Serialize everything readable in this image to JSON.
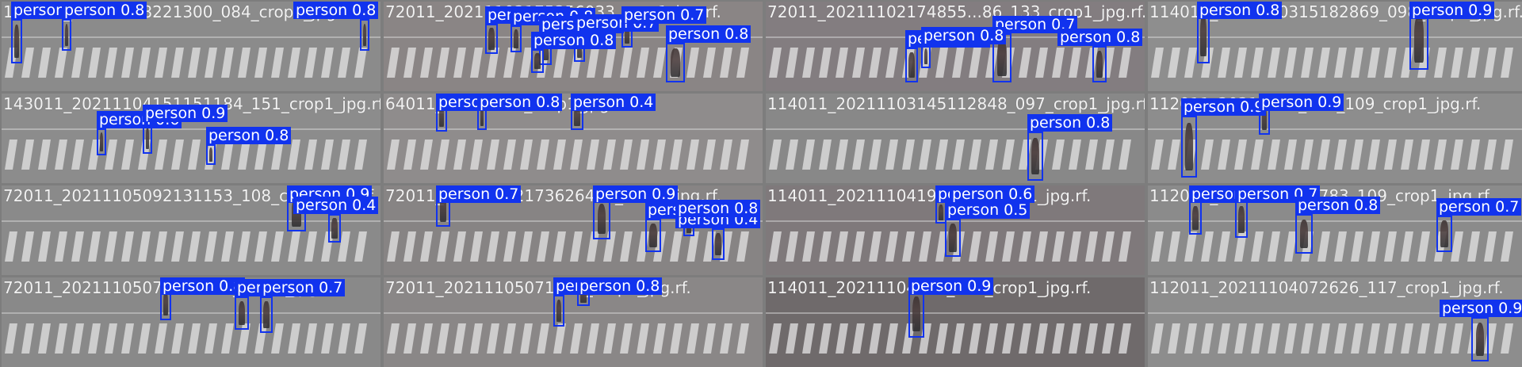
{
  "colors": {
    "box": "#1133ee",
    "label_text": "#ffffff",
    "divider": "#7d7d7d"
  },
  "tiles": [
    {
      "title": "154011_20211108221300_084_crop1_jpg.rf.",
      "tone": "#8b8b8b",
      "detections": [
        {
          "label": "person 0.9"
        },
        {
          "label": "person 0.8"
        },
        {
          "label": "person 0.8"
        }
      ]
    },
    {
      "title": "72011_20211102175356033_crop1_jpg.rf.",
      "tone": "#8a8585",
      "detections": [
        {
          "label": "person 0.8"
        },
        {
          "label": "person 0.8"
        },
        {
          "label": "person 0.8"
        },
        {
          "label": "person 0.7"
        },
        {
          "label": "person 0.8"
        },
        {
          "label": "person 0.8"
        },
        {
          "label": "person 0.7"
        }
      ]
    },
    {
      "title": "72011_20211102174855...86_133_crop1_jpg.rf.",
      "tone": "#837d80",
      "detections": [
        {
          "label": "person 0.8"
        },
        {
          "label": "person 0.7"
        },
        {
          "label": "person 0.8"
        },
        {
          "label": "person 0.8"
        }
      ]
    },
    {
      "title": "114011_2021110315182869_098_crop1_jpg.rf.",
      "tone": "#8e8e8e",
      "detections": [
        {
          "label": "person 0.8"
        },
        {
          "label": "person 0.9"
        }
      ]
    },
    {
      "title": "143011_20211104151151184_151_crop1_jpg.rf.",
      "tone": "#8c8c8c",
      "detections": [
        {
          "label": "person 0.6"
        },
        {
          "label": "person 0.9"
        },
        {
          "label": "person 0.8"
        }
      ]
    },
    {
      "title": "64011_20211104_crop1_jpg.rf.",
      "tone": "#8f8c8c",
      "detections": [
        {
          "label": "person 0.5"
        },
        {
          "label": "person 0.8"
        },
        {
          "label": "person 0.4"
        }
      ]
    },
    {
      "title": "114011_20211103145112848_097_crop1_jpg.rf.",
      "tone": "#888888",
      "detections": [
        {
          "label": "person 0.8"
        }
      ]
    },
    {
      "title": "112011_20211104_748_109_crop1_jpg.rf.",
      "tone": "#8d8d8d",
      "detections": [
        {
          "label": "person 0.9"
        },
        {
          "label": "person 0.9"
        }
      ]
    },
    {
      "title": "72011_20211105092131153_108_crop1_jpg.rf.",
      "tone": "#8a8a8a",
      "detections": [
        {
          "label": "person 0.9"
        },
        {
          "label": "person 0.4"
        }
      ]
    },
    {
      "title": "72011_20211102173626411_crop1_jpg.rf.",
      "tone": "#878484",
      "detections": [
        {
          "label": "person 0.7"
        },
        {
          "label": "person 0.9"
        },
        {
          "label": "person 0.7"
        },
        {
          "label": "person 0.4"
        },
        {
          "label": "person 0.8"
        }
      ]
    },
    {
      "title": "114011_20211104195_104_crop1_jpg.rf.",
      "tone": "#7f797b",
      "detections": [
        {
          "label": "person 0.5"
        },
        {
          "label": "person 0.7"
        },
        {
          "label": "person 0.6"
        }
      ]
    },
    {
      "title": "112011_2021110441783_109_crop1_jpg.rf.",
      "tone": "#8b8b8b",
      "detections": [
        {
          "label": "person 0.3"
        },
        {
          "label": "person 0.7"
        },
        {
          "label": "person 0.8"
        },
        {
          "label": "person 0.7"
        }
      ]
    },
    {
      "title": "72011_20211105074631130_crop1_jpg.rf.",
      "tone": "#898989",
      "detections": [
        {
          "label": "person 0.8"
        },
        {
          "label": "person 0.7"
        },
        {
          "label": "person 0.7"
        }
      ]
    },
    {
      "title": "72011_20211105071955_crop1_jpg.rf.",
      "tone": "#8a8787",
      "detections": [
        {
          "label": "person 0.9"
        },
        {
          "label": "person 0.8"
        }
      ]
    },
    {
      "title": "114011_20211104104_104_crop1_jpg.rf.",
      "tone": "#6f6a6b",
      "detections": [
        {
          "label": "person 0.9"
        }
      ]
    },
    {
      "title": "112011_20211104072626_117_crop1_jpg.rf.",
      "tone": "#8d8d8d",
      "detections": [
        {
          "label": "person 0.9"
        }
      ]
    }
  ]
}
